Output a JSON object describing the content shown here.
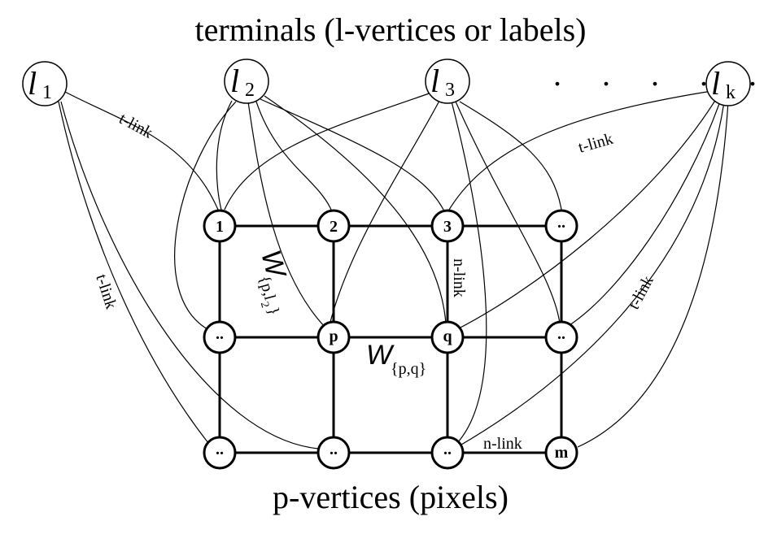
{
  "top_title": "terminals (l-vertices or labels)",
  "bottom_title": "p-vertices (pixels)",
  "terminals": [
    {
      "var": "l",
      "sub": "1"
    },
    {
      "var": "l",
      "sub": "2"
    },
    {
      "var": "l",
      "sub": "3"
    },
    {
      "var": "l",
      "sub": "k"
    }
  ],
  "terminal_ellipsis": ". . . . .",
  "pixels": {
    "r0c0": "1",
    "r0c1": "2",
    "r0c2": "3",
    "r0c3": "..",
    "r1c0": "..",
    "r1c1": "p",
    "r1c2": "q",
    "r1c3": "..",
    "r2c0": "..",
    "r2c1": "..",
    "r2c2": "..",
    "r2c3": "m"
  },
  "link_labels": {
    "tlink_l1_1": "t-link",
    "tlink_l1_side": "t-link",
    "tlink_lk_3": "t-link",
    "tlink_lk_side": "t-link",
    "nlink_vertical": "n-link",
    "nlink_bottom": "n-link"
  },
  "weights": {
    "w_pl2_main": "W",
    "w_pl2_sub": "{p,l",
    "w_pl2_sub_idx": "2",
    "w_pl2_sub_end": "}",
    "w_pq_main": "W",
    "w_pq_sub": "{p,q}"
  }
}
